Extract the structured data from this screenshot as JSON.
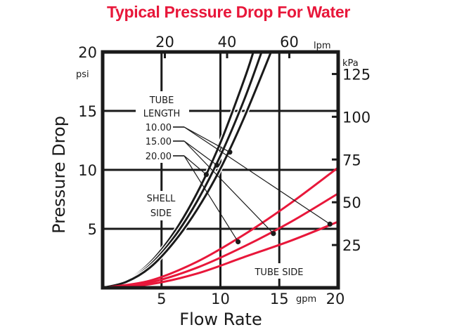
{
  "chart_data": {
    "type": "line",
    "title": "Typical Pressure Drop For Water",
    "xlabel": "Flow Rate",
    "ylabel": "Pressure Drop",
    "x_unit": "gpm",
    "y_unit": "psi",
    "xlim": [
      0,
      20
    ],
    "ylim": [
      0,
      20
    ],
    "x_ticks": [
      "5",
      "10",
      "15",
      "20"
    ],
    "y_ticks": [
      "5",
      "10",
      "15",
      "20"
    ],
    "x_tick_values": [
      5,
      10,
      15,
      20
    ],
    "y_tick_values": [
      5,
      10,
      15,
      20
    ],
    "grid": true,
    "secondary_x": {
      "unit": "lpm",
      "ticks": [
        "20",
        "40",
        "60"
      ],
      "tick_values": [
        20,
        40,
        60
      ],
      "gpm_per_unit": 0.264172
    },
    "secondary_y": {
      "unit": "kPa",
      "ticks": [
        "25",
        "50",
        "75",
        "100",
        "125"
      ],
      "tick_values": [
        25,
        50,
        75,
        100,
        125
      ],
      "psi_per_unit": 0.145038
    },
    "annotations": {
      "tube_length_header": [
        "TUBE",
        "LENGTH"
      ],
      "shell_side": [
        "SHELL",
        "SIDE"
      ],
      "tube_side": "TUBE SIDE"
    },
    "colors": {
      "shell": "#1a1a1a",
      "tube": "#e8173a",
      "title": "#e8173a"
    },
    "series": [
      {
        "name": "Shell side 10.00",
        "group": "shell",
        "tube_length": "10.00",
        "x": [
          0,
          2,
          4,
          6,
          8,
          10,
          12,
          12.8
        ],
        "y": [
          0,
          0.6,
          2.1,
          4.6,
          8.0,
          12.3,
          17.6,
          20
        ],
        "marker": [
          10.8,
          11.5
        ]
      },
      {
        "name": "Shell side 15.00",
        "group": "shell",
        "tube_length": "15.00",
        "x": [
          0,
          2,
          4,
          6,
          8,
          10,
          12,
          13.5
        ],
        "y": [
          0,
          0.55,
          1.9,
          4.2,
          7.3,
          11.2,
          15.9,
          20
        ],
        "marker": [
          9.7,
          10.4
        ]
      },
      {
        "name": "Shell side 20.00",
        "group": "shell",
        "tube_length": "20.00",
        "x": [
          0,
          2,
          4,
          6,
          8,
          10,
          12,
          14.3
        ],
        "y": [
          0,
          0.5,
          1.7,
          3.8,
          6.6,
          10.1,
          14.4,
          20
        ],
        "marker": [
          8.8,
          9.6
        ]
      },
      {
        "name": "Tube side 10.00",
        "group": "tube",
        "tube_length": "10.00",
        "x": [
          0,
          4,
          8,
          12,
          16,
          20
        ],
        "y": [
          0,
          0.3,
          1.2,
          2.6,
          4.0,
          5.6
        ],
        "marker": [
          19.3,
          5.4
        ]
      },
      {
        "name": "Tube side 15.00",
        "group": "tube",
        "tube_length": "15.00",
        "x": [
          0,
          4,
          8,
          12,
          16,
          20
        ],
        "y": [
          0,
          0.45,
          1.7,
          3.5,
          5.6,
          8.0
        ],
        "marker": [
          14.5,
          4.6
        ]
      },
      {
        "name": "Tube side 20.00",
        "group": "tube",
        "tube_length": "20.00",
        "x": [
          0,
          4,
          8,
          12,
          16,
          20
        ],
        "y": [
          0,
          0.6,
          2.2,
          4.5,
          7.2,
          10.2
        ],
        "marker": [
          11.5,
          3.9
        ]
      }
    ]
  }
}
